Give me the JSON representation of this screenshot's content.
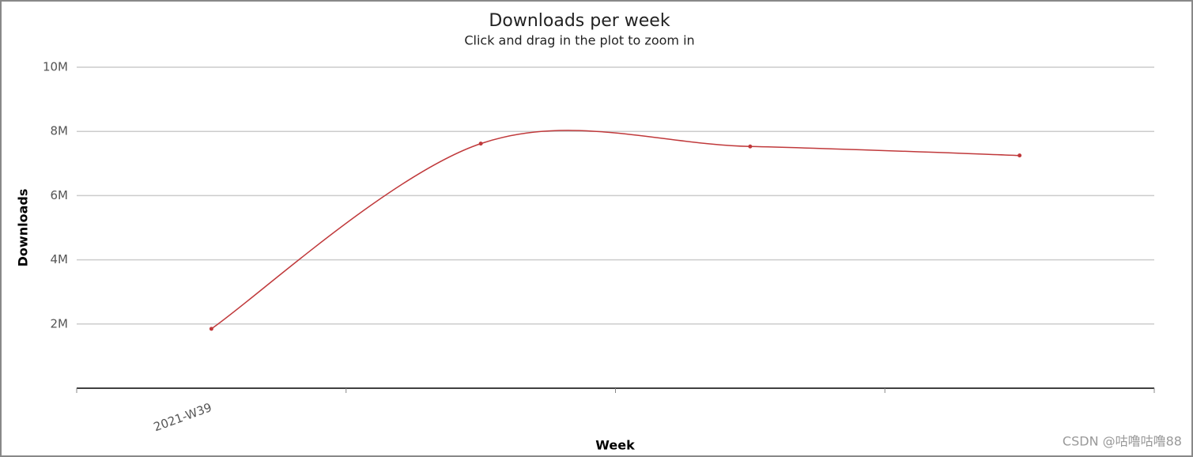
{
  "chart_data": {
    "type": "line",
    "title": "Downloads per week",
    "subtitle": "Click and drag in the plot to zoom in",
    "x_label": "Week",
    "y_label": "Downloads",
    "categories": [
      "2021-W39",
      null,
      null,
      null
    ],
    "values": [
      1850000,
      7620000,
      7530000,
      7250000
    ],
    "color": "#c0393b",
    "ylim": [
      0,
      10000000
    ],
    "yticks": [
      {
        "value": 2000000,
        "label": "2M"
      },
      {
        "value": 4000000,
        "label": "4M"
      },
      {
        "value": 6000000,
        "label": "6M"
      },
      {
        "value": 8000000,
        "label": "8M"
      },
      {
        "value": 10000000,
        "label": "10M"
      }
    ],
    "grid": true
  },
  "watermark": "CSDN @咕噜咕噜88"
}
